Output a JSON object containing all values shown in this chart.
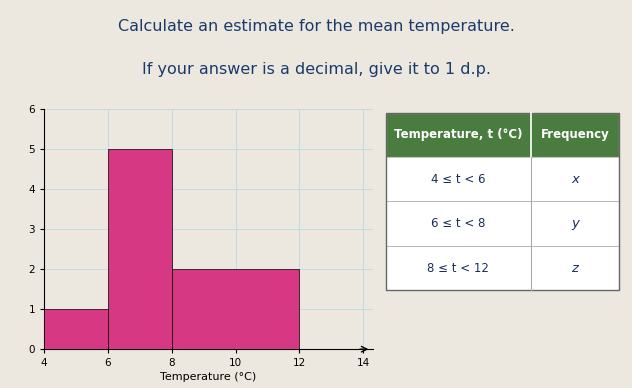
{
  "title_line1": "Calculate an estimate for the mean temperature.",
  "title_line2": "If your answer is a decimal, give it to 1 d.p.",
  "title_fontsize": 11.5,
  "title_color": "#1a3a6b",
  "bars": [
    {
      "x_left": 4,
      "x_right": 6,
      "height": 1
    },
    {
      "x_left": 6,
      "x_right": 8,
      "height": 5
    },
    {
      "x_left": 8,
      "x_right": 12,
      "height": 2
    }
  ],
  "bar_color": "#d63884",
  "bar_edgecolor": "#000000",
  "bar_linewidth": 0.5,
  "xlabel": "Temperature (°C)",
  "xlim": [
    4,
    14.3
  ],
  "ylim": [
    0,
    6
  ],
  "xticks": [
    4,
    6,
    8,
    10,
    12,
    14
  ],
  "yticks": [
    0,
    1,
    2,
    3,
    4,
    5,
    6
  ],
  "grid_color": "#b0d8e8",
  "grid_linewidth": 0.5,
  "background_color": "#ede8df",
  "plot_bg_color": "#ede8df",
  "table_header_bg": "#4a7c3f",
  "table_header_fg": "#ffffff",
  "table_col1_header": "Temperature, t (°C)",
  "table_col2_header": "Frequency",
  "table_rows": [
    {
      "range": "4 ≤ t < 6",
      "freq": "x"
    },
    {
      "range": "6 ≤ t < 8",
      "freq": "y"
    },
    {
      "range": "8 ≤ t < 12",
      "freq": "z"
    }
  ],
  "table_fontsize": 8.5,
  "xlabel_fontsize": 8,
  "tick_fontsize": 7.5
}
